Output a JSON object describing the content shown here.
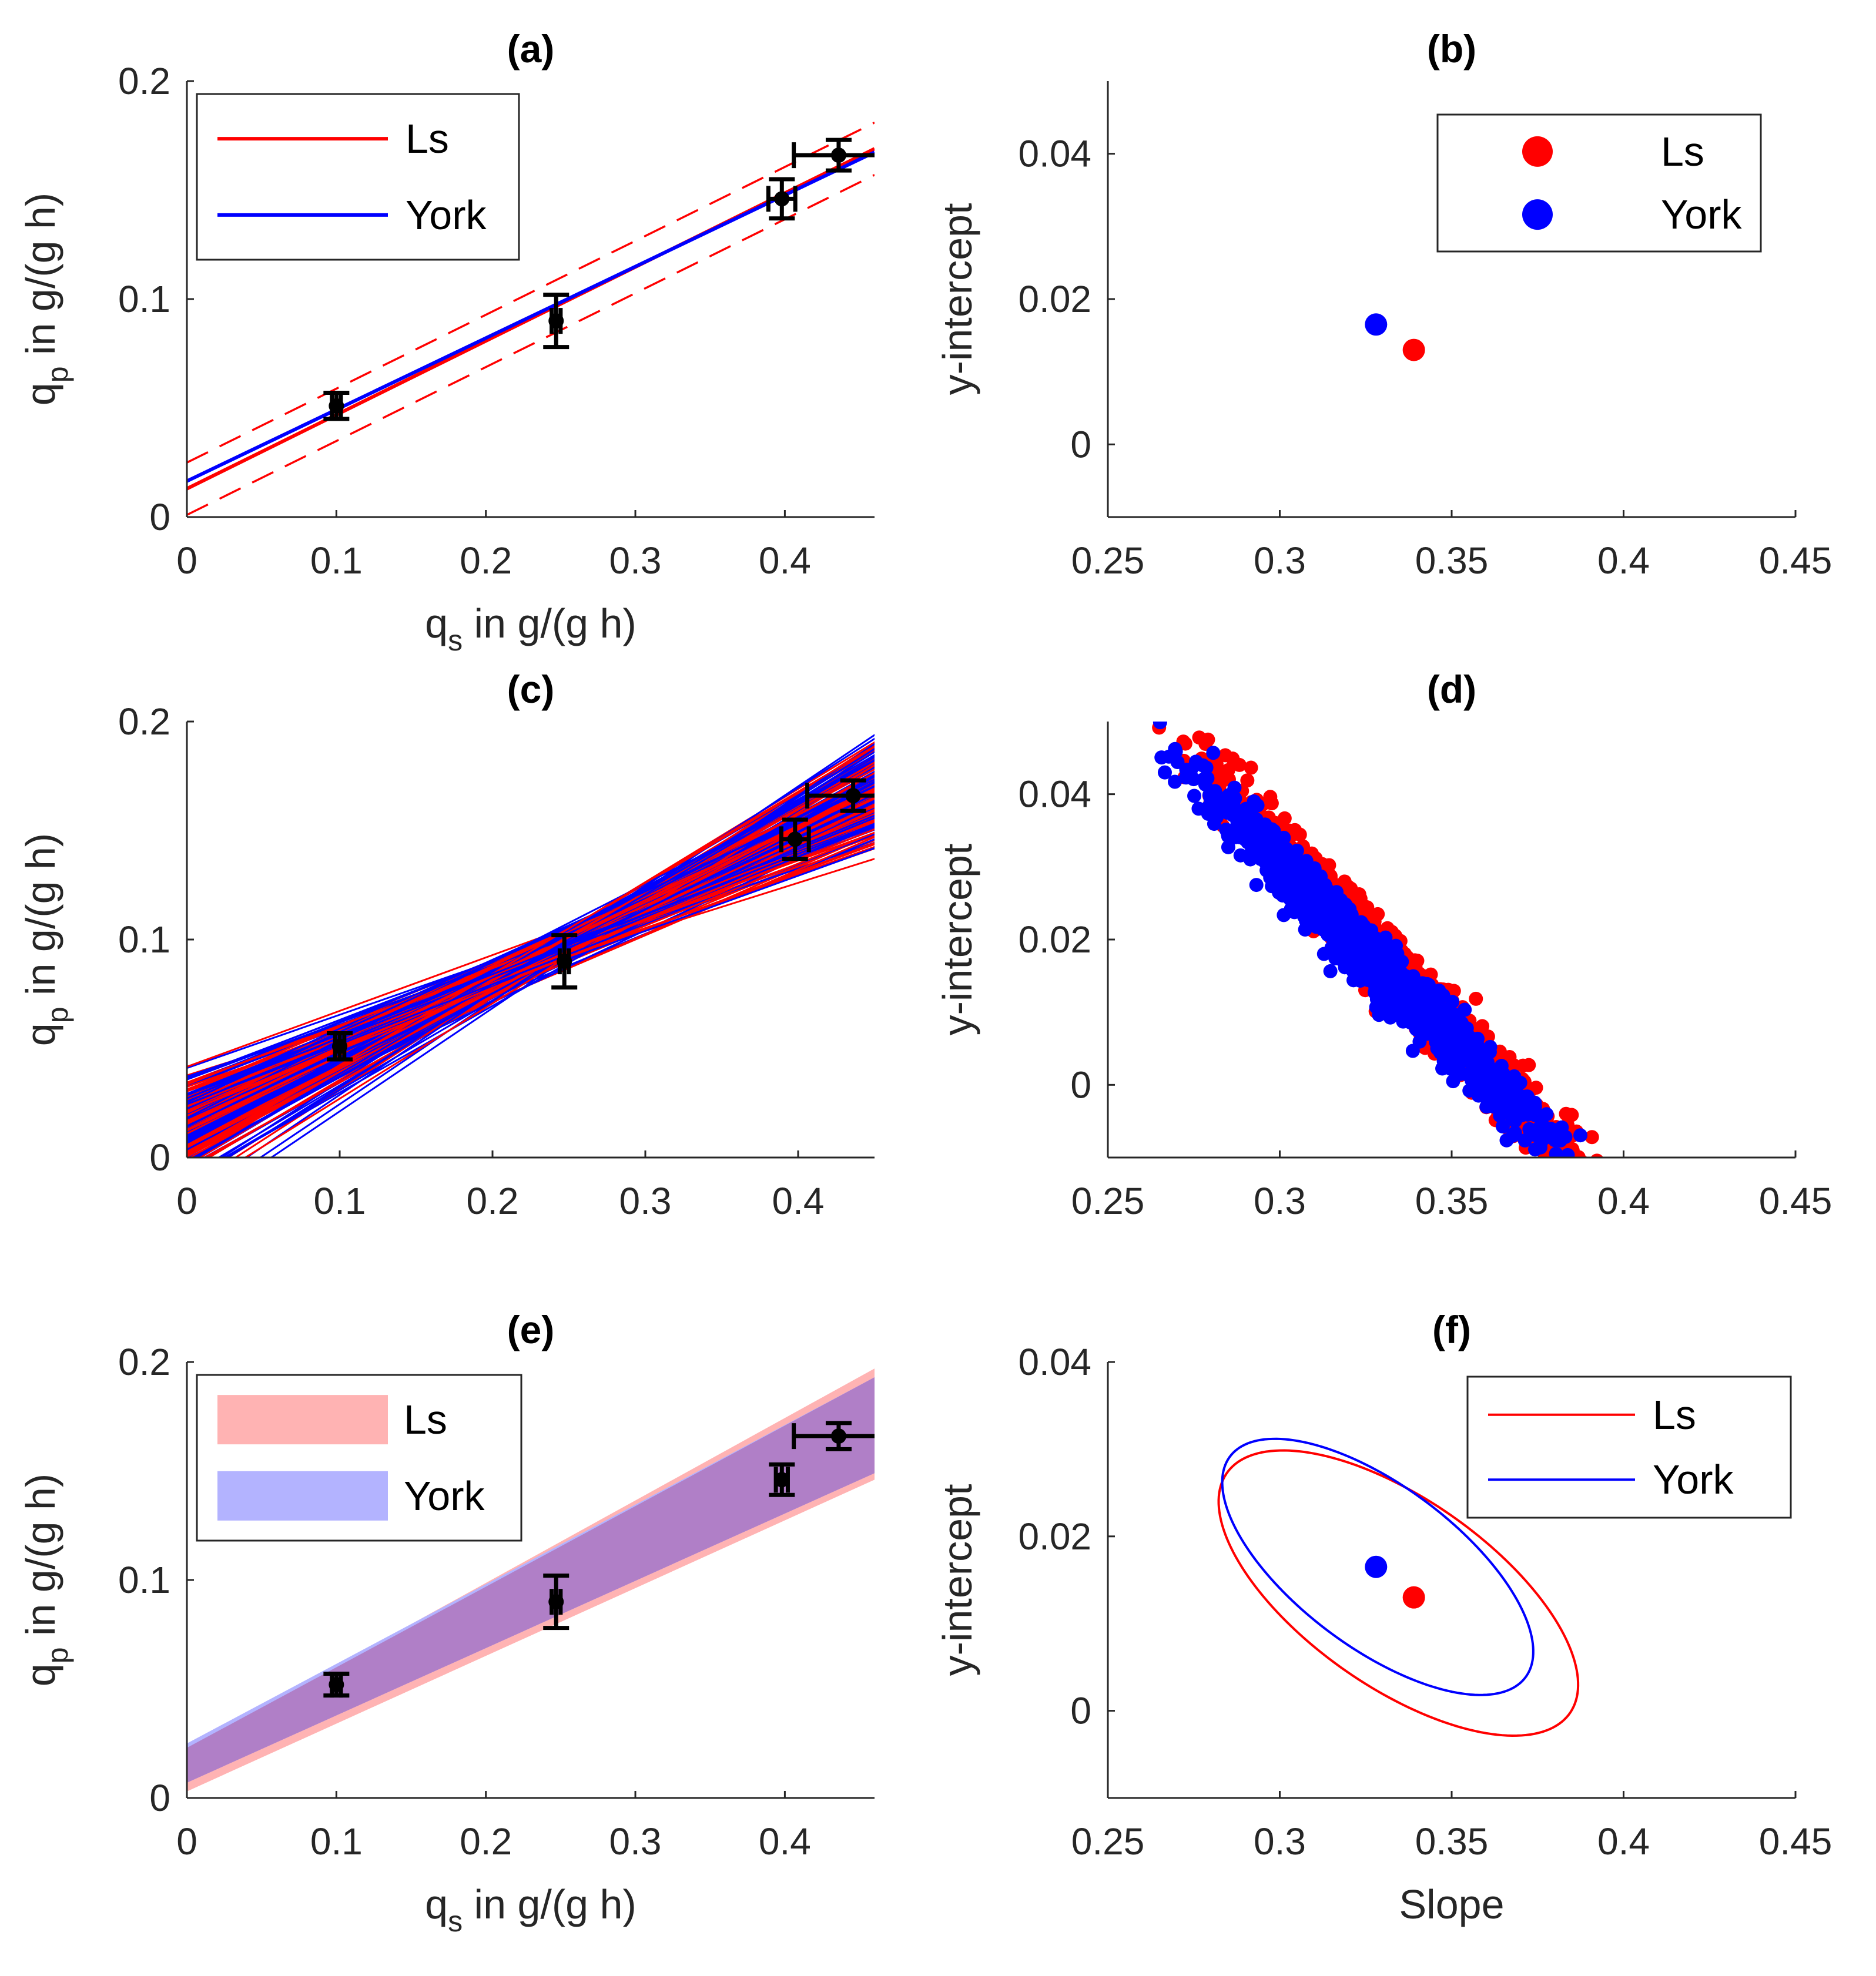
{
  "figure": {
    "background": "#ffffff"
  },
  "colors": {
    "ls": "#ff0000",
    "york": "#0000ff",
    "ls_fill": "#ffb3b3",
    "york_fill": "#b3b3ff",
    "overlap": "#b07fc7",
    "points": "#000000"
  },
  "chart_data": [
    {
      "id": "a",
      "type": "line",
      "title": "(a)",
      "xlabel": "q_s in g/(g h)",
      "xlabel_main": "q",
      "xlabel_sub": "s",
      "xlabel_rest": " in g/(g h)",
      "ylabel_main": "q",
      "ylabel_sub": "p",
      "ylabel_rest": " in g/(g h)",
      "xlim": [
        0,
        0.46
      ],
      "ylim": [
        0,
        0.2
      ],
      "xticks": [
        0,
        0.1,
        0.2,
        0.3,
        0.4
      ],
      "xtick_labels": [
        "0",
        "0.1",
        "0.2",
        "0.3",
        "0.4"
      ],
      "yticks": [
        0,
        0.1,
        0.2
      ],
      "ytick_labels": [
        "0",
        "0.1",
        "0.2"
      ],
      "legend": {
        "position": "top-left",
        "entries": [
          "Ls",
          "York"
        ]
      },
      "lines": [
        {
          "name": "Ls",
          "slope": 0.339,
          "intercept": 0.013,
          "style": "solid",
          "color": "#ff0000"
        },
        {
          "name": "York",
          "slope": 0.328,
          "intercept": 0.0165,
          "style": "solid",
          "color": "#0000ff"
        },
        {
          "name": "Ls upper bound",
          "slope": 0.339,
          "intercept": 0.025,
          "style": "dashed",
          "color": "#ff0000"
        },
        {
          "name": "Ls lower bound",
          "slope": 0.339,
          "intercept": 0.001,
          "style": "dashed",
          "color": "#ff0000"
        }
      ],
      "points": [
        {
          "x": 0.1,
          "y": 0.051,
          "xerr": 0.003,
          "yerr": 0.006
        },
        {
          "x": 0.247,
          "y": 0.09,
          "xerr": 0.003,
          "yerr": 0.012
        },
        {
          "x": 0.398,
          "y": 0.146,
          "xerr": 0.009,
          "yerr": 0.009
        },
        {
          "x": 0.436,
          "y": 0.166,
          "xerr": 0.03,
          "yerr": 0.007
        }
      ]
    },
    {
      "id": "b",
      "type": "scatter",
      "title": "(b)",
      "ylabel": "y-intercept",
      "xlim": [
        0.25,
        0.45
      ],
      "ylim": [
        -0.01,
        0.05
      ],
      "xticks": [
        0.25,
        0.3,
        0.35,
        0.4,
        0.45
      ],
      "xtick_labels": [
        "0.25",
        "0.3",
        "0.35",
        "0.4",
        "0.45"
      ],
      "yticks": [
        0,
        0.02,
        0.04
      ],
      "ytick_labels": [
        "0",
        "0.02",
        "0.04"
      ],
      "legend": {
        "position": "top-right",
        "entries": [
          "Ls",
          "York"
        ]
      },
      "series": [
        {
          "name": "Ls",
          "color": "#ff0000",
          "x": [
            0.339
          ],
          "y": [
            0.013
          ]
        },
        {
          "name": "York",
          "color": "#0000ff",
          "x": [
            0.328
          ],
          "y": [
            0.0165
          ]
        }
      ]
    },
    {
      "id": "c",
      "type": "line",
      "title": "(c)",
      "ylabel_main": "q",
      "ylabel_sub": "p",
      "ylabel_rest": " in g/(g h)",
      "xlim": [
        0,
        0.45
      ],
      "ylim": [
        0,
        0.2
      ],
      "xticks": [
        0,
        0.1,
        0.2,
        0.3,
        0.4
      ],
      "xtick_labels": [
        "0",
        "0.1",
        "0.2",
        "0.3",
        "0.4"
      ],
      "yticks": [
        0,
        0.1,
        0.2
      ],
      "ytick_labels": [
        "0",
        "0.1",
        "0.2"
      ],
      "ensemble": {
        "count_per_method": 130,
        "slope_mean": 0.333,
        "intercept_mean": 0.015,
        "pivot_x": 0.25,
        "slope_spread": 0.045
      },
      "points": [
        {
          "x": 0.1,
          "y": 0.051,
          "xerr": 0.003,
          "yerr": 0.006
        },
        {
          "x": 0.247,
          "y": 0.09,
          "xerr": 0.003,
          "yerr": 0.012
        },
        {
          "x": 0.398,
          "y": 0.146,
          "xerr": 0.009,
          "yerr": 0.009
        },
        {
          "x": 0.436,
          "y": 0.166,
          "xerr": 0.03,
          "yerr": 0.007
        }
      ]
    },
    {
      "id": "d",
      "type": "scatter",
      "title": "(d)",
      "ylabel": "y-intercept",
      "xlim": [
        0.25,
        0.45
      ],
      "ylim": [
        -0.01,
        0.05
      ],
      "xticks": [
        0.25,
        0.3,
        0.35,
        0.4,
        0.45
      ],
      "xtick_labels": [
        "0.25",
        "0.3",
        "0.35",
        "0.4",
        "0.45"
      ],
      "yticks": [
        0,
        0.02,
        0.04
      ],
      "ytick_labels": [
        "0",
        "0.02",
        "0.04"
      ],
      "cloud": [
        {
          "name": "Ls",
          "color": "#ff0000",
          "center": [
            0.339,
            0.013
          ],
          "slope_sd": 0.027,
          "intercept_sd": 0.0025,
          "corr_slope": -0.5,
          "count": 1200
        },
        {
          "name": "York",
          "color": "#0000ff",
          "center": [
            0.328,
            0.0165
          ],
          "slope_sd": 0.024,
          "intercept_sd": 0.0022,
          "corr_slope": -0.48,
          "count": 1200
        }
      ]
    },
    {
      "id": "e",
      "type": "area",
      "title": "(e)",
      "xlabel_main": "q",
      "xlabel_sub": "s",
      "xlabel_rest": " in g/(g h)",
      "ylabel_main": "q",
      "ylabel_sub": "p",
      "ylabel_rest": " in g/(g h)",
      "xlim": [
        0,
        0.46
      ],
      "ylim": [
        0,
        0.2
      ],
      "xticks": [
        0,
        0.1,
        0.2,
        0.3,
        0.4
      ],
      "xtick_labels": [
        "0",
        "0.1",
        "0.2",
        "0.3",
        "0.4"
      ],
      "yticks": [
        0,
        0.1,
        0.2
      ],
      "ytick_labels": [
        "0",
        "0.1",
        "0.2"
      ],
      "legend": {
        "position": "top-left",
        "entries": [
          "Ls",
          "York"
        ]
      },
      "bands": [
        {
          "name": "Ls",
          "x": [
            0,
            0.46
          ],
          "upper": [
            0.023,
            0.197
          ],
          "lower": [
            0.003,
            0.146
          ]
        },
        {
          "name": "York",
          "x": [
            0,
            0.46
          ],
          "upper": [
            0.025,
            0.193
          ],
          "lower": [
            0.007,
            0.149
          ]
        }
      ],
      "points": [
        {
          "x": 0.1,
          "y": 0.052,
          "xerr": 0.003,
          "yerr": 0.005
        },
        {
          "x": 0.247,
          "y": 0.09,
          "xerr": 0.003,
          "yerr": 0.012
        },
        {
          "x": 0.398,
          "y": 0.146,
          "xerr": 0.004,
          "yerr": 0.007
        },
        {
          "x": 0.436,
          "y": 0.166,
          "xerr": 0.03,
          "yerr": 0.006
        }
      ]
    },
    {
      "id": "f",
      "type": "line",
      "title": "(f)",
      "xlabel": "Slope",
      "ylabel": "y-intercept",
      "xlim": [
        0.25,
        0.45
      ],
      "ylim": [
        -0.01,
        0.04
      ],
      "xticks": [
        0.25,
        0.3,
        0.35,
        0.4,
        0.45
      ],
      "xtick_labels": [
        "0.25",
        "0.3",
        "0.35",
        "0.4",
        "0.45"
      ],
      "yticks": [
        0,
        0.02,
        0.04
      ],
      "ytick_labels": [
        "0",
        "0.02",
        "0.04"
      ],
      "legend": {
        "position": "top-right",
        "entries": [
          "Ls",
          "York"
        ]
      },
      "centers": [
        {
          "name": "Ls",
          "color": "#ff0000",
          "x": 0.339,
          "y": 0.013
        },
        {
          "name": "York",
          "color": "#0000ff",
          "x": 0.328,
          "y": 0.0165
        }
      ],
      "ellipses": [
        {
          "name": "Ls",
          "color": "#ff0000",
          "endpoints": [
            [
              0.2835,
              0.0265
            ],
            [
              0.3855,
              0.0005
            ]
          ],
          "width_slope": 0.0115
        },
        {
          "name": "York",
          "color": "#0000ff",
          "endpoints": [
            [
              0.2845,
              0.0285
            ],
            [
              0.3725,
              0.0045
            ]
          ],
          "width_slope": 0.0105
        }
      ]
    }
  ]
}
